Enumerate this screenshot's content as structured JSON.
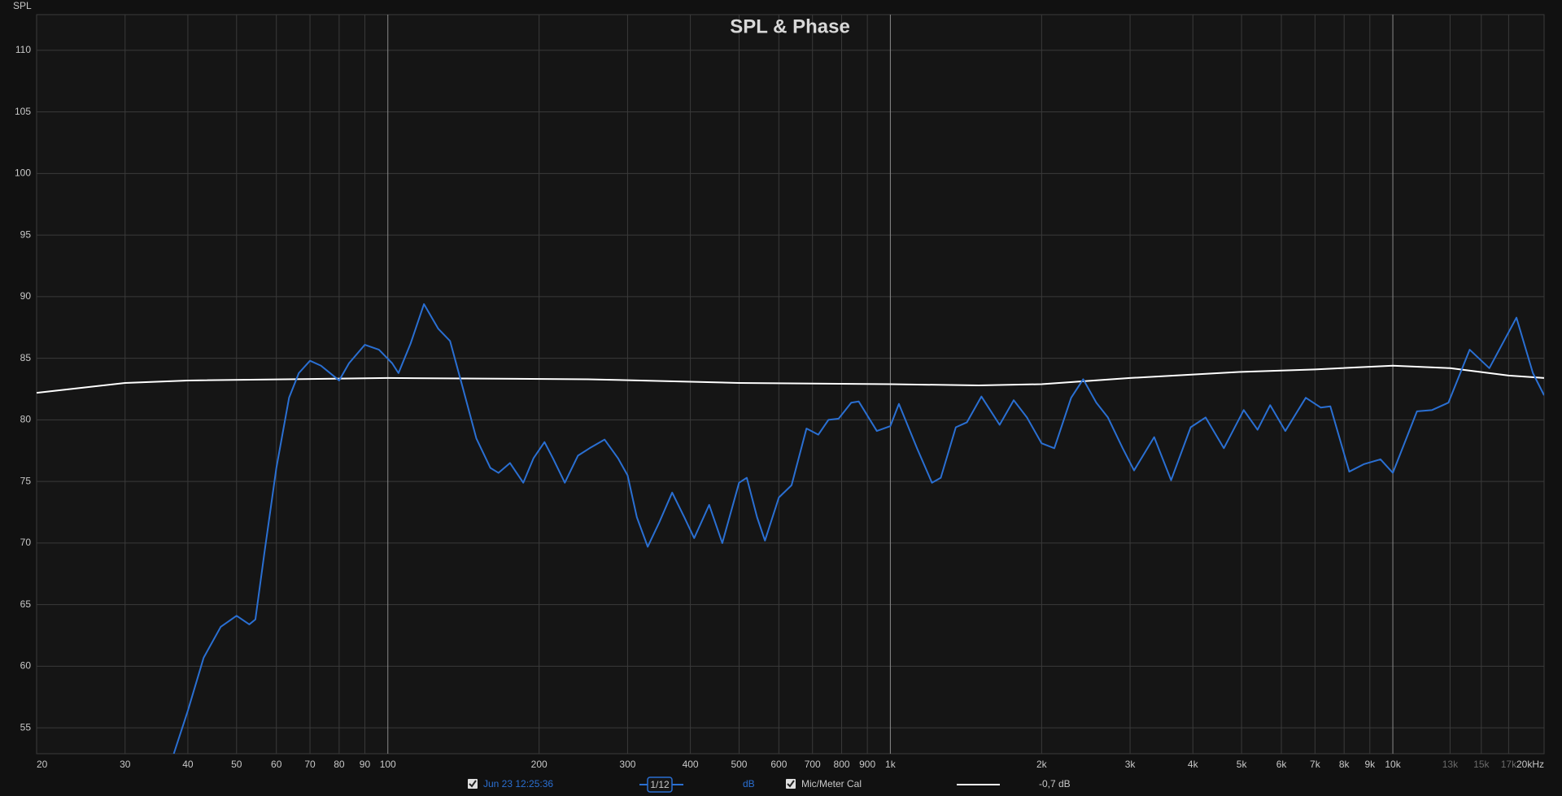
{
  "chart_data": {
    "type": "line",
    "title": "SPL & Phase",
    "y_label": "SPL",
    "xscale": "log",
    "grid": true,
    "xlim": [
      20,
      20000
    ],
    "ylim": [
      52.9,
      112.9
    ],
    "xticks": [
      20,
      30,
      40,
      50,
      60,
      70,
      80,
      90,
      100,
      200,
      300,
      400,
      500,
      600,
      700,
      800,
      900,
      {
        "value": 1000,
        "label": "1k"
      },
      {
        "value": 2000,
        "label": "2k"
      },
      {
        "value": 3000,
        "label": "3k"
      },
      {
        "value": 4000,
        "label": "4k"
      },
      {
        "value": 5000,
        "label": "5k"
      },
      {
        "value": 6000,
        "label": "6k"
      },
      {
        "value": 7000,
        "label": "7k"
      },
      {
        "value": 8000,
        "label": "8k"
      },
      {
        "value": 9000,
        "label": "9k"
      },
      {
        "value": 10000,
        "label": "10k"
      },
      {
        "value": 13000,
        "label": "13k"
      },
      {
        "value": 15000,
        "label": "15k"
      },
      {
        "value": 17000,
        "label": "17k"
      },
      {
        "value": 20000,
        "label": "20kHz"
      }
    ],
    "yticks": [
      55,
      60,
      65,
      70,
      75,
      80,
      85,
      90,
      95,
      100,
      105,
      110
    ],
    "smoothing": "1/12",
    "units": "dB",
    "offset": "-0,7 dB",
    "series": [
      {
        "name": "Jun 23 12:25:36",
        "color": "#2a6fd2",
        "x": [
          37.5,
          40,
          43,
          46.5,
          50,
          53,
          54.5,
          56.8,
          60,
          63.6,
          66.5,
          70,
          73.6,
          80,
          83.7,
          90,
          96,
          102,
          105,
          111,
          118,
          126,
          133,
          141,
          150,
          160,
          166,
          175,
          186,
          195,
          205,
          213,
          225,
          239,
          252,
          270,
          287,
          300,
          313,
          329,
          347,
          368,
          389,
          407,
          436,
          463,
          500,
          518,
          543,
          563,
          600,
          636,
          681,
          719,
          753,
          789,
          836,
          865,
          940,
          1000,
          1040,
          1130,
          1210,
          1260,
          1350,
          1420,
          1518,
          1650,
          1760,
          1870,
          2000,
          2120,
          2290,
          2420,
          2570,
          2710,
          2900,
          3055,
          3350,
          3620,
          3960,
          4240,
          4610,
          5050,
          5380,
          5700,
          6110,
          6710,
          7190,
          7510,
          8190,
          8750,
          9450,
          10000,
          11170,
          11970,
          12900,
          14220,
          15560,
          17620,
          19000,
          20000
        ],
        "values": [
          52.9,
          56.4,
          60.7,
          63.2,
          64.1,
          63.4,
          63.8,
          69.2,
          76.1,
          81.8,
          83.8,
          84.8,
          84.4,
          83.2,
          84.6,
          86.1,
          85.7,
          84.6,
          83.8,
          86.2,
          89.4,
          87.4,
          86.4,
          82.6,
          78.5,
          76.1,
          75.7,
          76.5,
          74.9,
          76.9,
          78.2,
          76.9,
          74.9,
          77.1,
          77.7,
          78.4,
          76.9,
          75.5,
          72.1,
          69.7,
          71.7,
          74.1,
          72.1,
          70.4,
          73.1,
          70.0,
          74.9,
          75.3,
          72.1,
          70.2,
          73.7,
          74.7,
          79.3,
          78.8,
          80.0,
          80.1,
          81.4,
          81.5,
          79.1,
          79.5,
          81.3,
          77.7,
          74.9,
          75.3,
          79.4,
          79.8,
          81.9,
          79.6,
          81.6,
          80.2,
          78.1,
          77.7,
          81.8,
          83.3,
          81.4,
          80.2,
          77.7,
          75.9,
          78.6,
          75.1,
          79.4,
          80.2,
          77.7,
          80.8,
          79.2,
          81.2,
          79.1,
          81.8,
          81.0,
          81.1,
          75.8,
          76.4,
          76.8,
          75.7,
          80.7,
          80.8,
          81.4,
          85.7,
          84.2,
          88.3,
          83.8,
          82.0
        ]
      },
      {
        "name": "Mic/Meter Cal",
        "color": "#ffffff",
        "x": [
          20,
          30,
          40,
          100,
          250,
          500,
          1000,
          1500,
          2000,
          3000,
          5000,
          7000,
          10000,
          13000,
          17000,
          20000
        ],
        "values": [
          82.2,
          83.0,
          83.2,
          83.4,
          83.3,
          83.0,
          82.9,
          82.8,
          82.9,
          83.4,
          83.9,
          84.1,
          84.4,
          84.2,
          83.6,
          83.4
        ]
      }
    ]
  }
}
